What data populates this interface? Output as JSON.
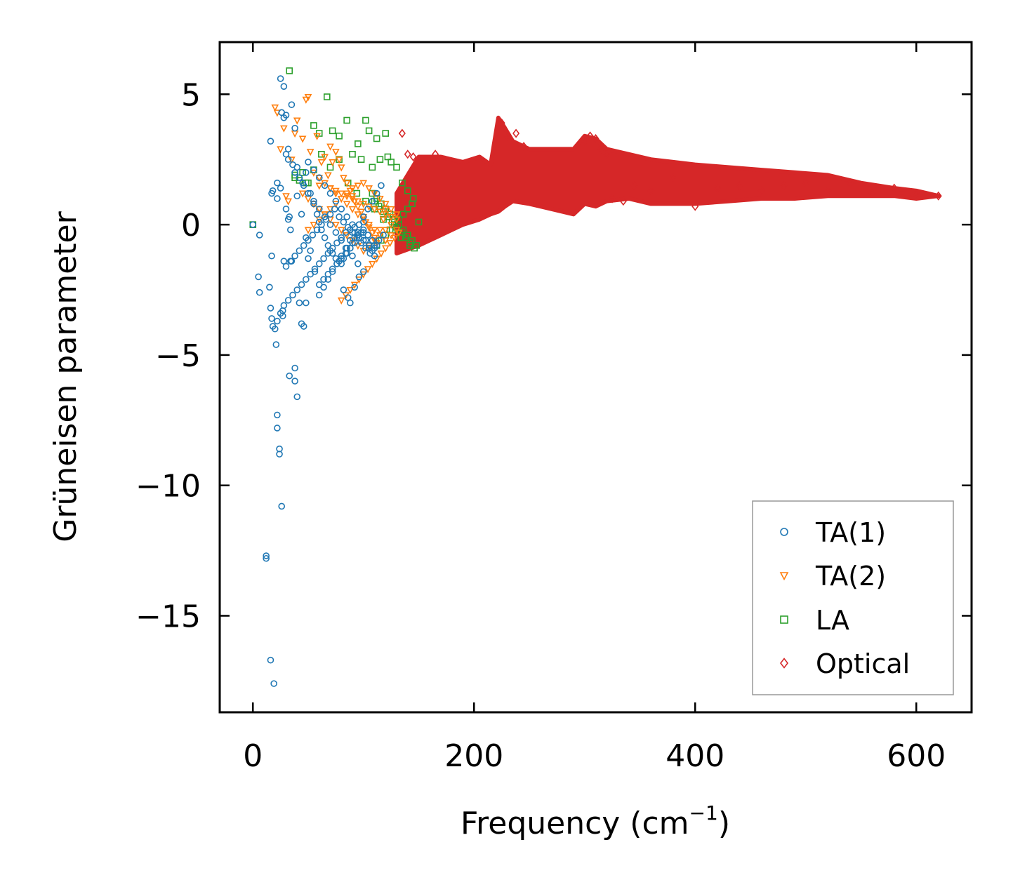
{
  "chart_data": {
    "type": "scatter",
    "title": "",
    "xlabel": "Frequency (cm",
    "xlabel_sup": "−1",
    "xlabel_tail": ")",
    "ylabel": "Grüneisen parameter",
    "xlim": [
      -30,
      650
    ],
    "ylim": [
      -18.7,
      7.0
    ],
    "xticks": [
      0,
      200,
      400,
      600
    ],
    "xtick_labels": [
      "0",
      "200",
      "400",
      "600"
    ],
    "yticks": [
      5,
      0,
      -5,
      -10,
      -15
    ],
    "ytick_labels": [
      "5",
      "0",
      "−5",
      "−10",
      "−15"
    ],
    "grid": false,
    "legend_position": "lower-right",
    "series": [
      {
        "name": "TA(1)",
        "marker": "circle",
        "color": "#1f77b4",
        "x": [
          0,
          6,
          5,
          6,
          15,
          16,
          17,
          16,
          19,
          20,
          21,
          22,
          22,
          24,
          24,
          26,
          27,
          27,
          12,
          12,
          17,
          17,
          16,
          18,
          22,
          25,
          28,
          30,
          32,
          32,
          34,
          35,
          33,
          38,
          40,
          38,
          42,
          44,
          46,
          48,
          50,
          22,
          25,
          26,
          28,
          30,
          32,
          35,
          38,
          40,
          45,
          48,
          52,
          55,
          58,
          60,
          62,
          65,
          68,
          70,
          72,
          75,
          78,
          80,
          82,
          85,
          88,
          90,
          92,
          95,
          98,
          100,
          102,
          105,
          108,
          110,
          38,
          42,
          46,
          50,
          55,
          60,
          65,
          70,
          75,
          80,
          85,
          90,
          95,
          100,
          82,
          86,
          88,
          92,
          96,
          28,
          30,
          33,
          36,
          40,
          44,
          48,
          52,
          56,
          60,
          64,
          68,
          72,
          76,
          80,
          84,
          88,
          92,
          96,
          100,
          104,
          108,
          112,
          18,
          22,
          25,
          28,
          32,
          36,
          40,
          44,
          48,
          52,
          56,
          60,
          64,
          68,
          72,
          76,
          80,
          84,
          88,
          92,
          96,
          100,
          30,
          34,
          38,
          42,
          46,
          50,
          54,
          58,
          62,
          66,
          70,
          74,
          78,
          82,
          86,
          90,
          94,
          98,
          102,
          106,
          110,
          114,
          118,
          60,
          64,
          68,
          72,
          76,
          80,
          84,
          88,
          92,
          96,
          100,
          104,
          108,
          112,
          116,
          50,
          55,
          60,
          65,
          70,
          75,
          80,
          85,
          90,
          95,
          100,
          105,
          110
        ],
        "y": [
          0,
          -0.4,
          -2.0,
          -2.6,
          -2.4,
          -3.2,
          -3.6,
          -16.7,
          -17.6,
          -4.0,
          -4.6,
          -7.3,
          -7.8,
          -8.6,
          -8.8,
          -10.8,
          -3.5,
          -3.3,
          -12.8,
          -12.7,
          -1.2,
          1.2,
          3.2,
          1.3,
          1.6,
          5.6,
          5.3,
          4.2,
          2.9,
          0.2,
          -0.2,
          -1.4,
          -5.8,
          -6.0,
          -6.6,
          -5.5,
          -3.0,
          -3.8,
          -3.9,
          -3.0,
          -1.3,
          1.0,
          1.4,
          4.3,
          4.1,
          2.7,
          2.5,
          4.6,
          3.7,
          2.2,
          1.6,
          2.0,
          1.2,
          0.8,
          0.4,
          0.1,
          -0.2,
          -0.5,
          -0.8,
          -1.0,
          -1.1,
          -1.3,
          -1.4,
          -1.5,
          -1.3,
          -1.1,
          -0.9,
          -0.7,
          -0.5,
          -0.4,
          -0.3,
          -0.2,
          -0.6,
          -0.8,
          -1.0,
          -0.9,
          2.0,
          1.8,
          1.5,
          1.2,
          0.9,
          0.6,
          0.3,
          0.0,
          -0.3,
          -0.6,
          -0.9,
          -1.2,
          -1.5,
          -1.8,
          -2.5,
          -2.8,
          -3.0,
          -2.4,
          -2.0,
          -1.4,
          0.6,
          0.3,
          2.3,
          1.1,
          0.4,
          -0.5,
          -1.0,
          -1.8,
          -2.3,
          -2.1,
          -1.9,
          -1.7,
          -1.5,
          -1.3,
          -1.1,
          -0.9,
          -0.7,
          -0.5,
          -0.3,
          -0.4,
          -0.6,
          -0.8,
          -3.9,
          -3.7,
          -3.4,
          -3.1,
          -2.9,
          -2.7,
          -2.5,
          -2.3,
          -2.1,
          -1.9,
          -1.7,
          -1.5,
          -1.3,
          -1.1,
          -0.9,
          -0.7,
          -0.5,
          -0.3,
          -0.2,
          -0.1,
          0.0,
          0.1,
          -1.6,
          -1.4,
          -1.2,
          -1.0,
          -0.8,
          -0.6,
          -0.4,
          -0.2,
          0.0,
          0.2,
          0.4,
          0.6,
          0.3,
          0.1,
          -0.1,
          -0.3,
          -0.5,
          -0.7,
          -0.9,
          -1.1,
          -0.8,
          -0.6,
          -0.4,
          -2.7,
          -2.4,
          -2.1,
          -1.8,
          -1.5,
          -1.2,
          -0.9,
          -0.6,
          -0.3,
          0.0,
          0.3,
          0.6,
          0.9,
          1.2,
          1.5,
          2.4,
          2.1,
          1.8,
          1.5,
          1.2,
          0.9,
          0.6,
          0.3,
          0.0,
          -0.3,
          -0.6,
          -0.9,
          -1.2
        ]
      },
      {
        "name": "TA(2)",
        "marker": "triangle-down",
        "color": "#ff7f0e",
        "x": [
          20,
          22,
          25,
          28,
          30,
          32,
          35,
          38,
          40,
          45,
          48,
          50,
          52,
          55,
          58,
          60,
          62,
          65,
          68,
          70,
          72,
          75,
          78,
          80,
          82,
          85,
          88,
          90,
          92,
          95,
          98,
          100,
          102,
          105,
          108,
          110,
          112,
          115,
          118,
          120,
          45,
          50,
          55,
          60,
          65,
          70,
          75,
          80,
          85,
          90,
          95,
          100,
          105,
          110,
          115,
          120,
          125,
          60,
          65,
          70,
          75,
          80,
          85,
          90,
          95,
          100,
          105,
          110,
          115,
          120,
          125,
          130,
          80,
          84,
          88,
          92,
          96,
          100,
          104,
          108,
          112,
          116,
          120,
          124,
          128,
          132,
          70,
          75,
          80,
          85,
          90,
          95,
          100,
          105,
          110,
          115,
          120,
          125,
          130,
          50,
          55,
          60,
          65,
          70,
          75,
          80,
          85,
          90,
          95,
          100,
          105,
          110,
          115,
          120,
          125,
          130
        ],
        "y": [
          4.5,
          4.3,
          2.9,
          3.7,
          1.1,
          0.9,
          2.5,
          3.5,
          4.0,
          3.3,
          4.8,
          4.9,
          2.8,
          2.0,
          3.4,
          1.5,
          2.4,
          2.6,
          1.9,
          3.0,
          2.4,
          2.8,
          2.5,
          2.2,
          1.8,
          1.6,
          1.3,
          1.1,
          0.9,
          0.7,
          0.5,
          0.3,
          0.1,
          -0.1,
          -0.3,
          -0.5,
          -0.7,
          -0.2,
          0.2,
          0.6,
          1.2,
          1.0,
          0.8,
          0.6,
          0.4,
          0.2,
          0.0,
          -0.2,
          -0.4,
          -0.6,
          -0.8,
          -1.0,
          -0.8,
          -0.6,
          -0.4,
          -0.2,
          0.0,
          1.8,
          1.6,
          1.4,
          1.2,
          1.0,
          0.8,
          0.6,
          0.4,
          0.2,
          0.0,
          -0.2,
          -0.4,
          -0.6,
          -0.4,
          -0.2,
          -2.9,
          -2.7,
          -2.5,
          -2.3,
          -2.1,
          -1.9,
          -1.7,
          -1.5,
          -1.3,
          -1.1,
          -0.9,
          -0.7,
          -0.5,
          -0.3,
          1.4,
          1.3,
          1.2,
          1.1,
          1.0,
          0.9,
          0.8,
          0.7,
          0.6,
          0.5,
          0.4,
          0.3,
          0.2,
          -0.2,
          0.0,
          0.2,
          0.4,
          0.6,
          0.8,
          1.0,
          1.2,
          1.4,
          1.5,
          1.6,
          1.4,
          1.2,
          1.0,
          0.8,
          0.6,
          0.4
        ]
      },
      {
        "name": "LA",
        "marker": "square",
        "color": "#2ca02c",
        "x": [
          0,
          33,
          38,
          45,
          50,
          55,
          60,
          67,
          72,
          78,
          85,
          90,
          95,
          98,
          102,
          105,
          108,
          112,
          115,
          120,
          122,
          125,
          130,
          135,
          140,
          145,
          150,
          38,
          42,
          48,
          55,
          62,
          70,
          78,
          86,
          94,
          102,
          110,
          118,
          126,
          134,
          142,
          108,
          112,
          116,
          120,
          124,
          128,
          132,
          136,
          140,
          144,
          148,
          110,
          114,
          118,
          122,
          126,
          130,
          134,
          138,
          142,
          146,
          112,
          116,
          120,
          124,
          128,
          132,
          136,
          140,
          144
        ],
        "y": [
          0,
          5.9,
          1.8,
          2.0,
          1.6,
          3.8,
          3.5,
          4.9,
          3.6,
          3.4,
          4.0,
          2.7,
          3.1,
          2.5,
          4.0,
          3.6,
          2.2,
          3.3,
          2.5,
          3.5,
          2.6,
          2.4,
          2.2,
          1.6,
          1.3,
          1.0,
          0.1,
          1.9,
          1.7,
          1.6,
          2.1,
          2.7,
          2.2,
          2.5,
          1.6,
          1.2,
          0.9,
          0.6,
          0.2,
          -0.2,
          -0.5,
          -0.8,
          1.2,
          1.0,
          0.8,
          0.6,
          0.4,
          0.2,
          0.0,
          -0.2,
          -0.4,
          -0.6,
          -0.8,
          0.9,
          0.7,
          0.5,
          0.3,
          0.1,
          -0.1,
          -0.3,
          -0.5,
          -0.7,
          -0.9,
          -0.8,
          -0.6,
          -0.4,
          -0.2,
          0.0,
          0.2,
          0.4,
          0.6,
          0.8
        ]
      },
      {
        "name": "Optical",
        "marker": "diamond",
        "color": "#d62728",
        "envelope": {
          "x": [
            130,
            150,
            170,
            190,
            205,
            215,
            222,
            228,
            235,
            250,
            270,
            290,
            300,
            310,
            320,
            340,
            360,
            380,
            400,
            430,
            460,
            490,
            520,
            550,
            580,
            600,
            620
          ],
          "upper": [
            1.2,
            2.6,
            2.6,
            2.4,
            2.6,
            2.3,
            4.1,
            3.7,
            3.2,
            2.9,
            2.9,
            2.9,
            3.4,
            3.3,
            2.9,
            2.7,
            2.5,
            2.4,
            2.3,
            2.2,
            2.1,
            2.0,
            1.9,
            1.6,
            1.4,
            1.3,
            1.1
          ],
          "lower": [
            -1.1,
            -0.8,
            -0.4,
            0.0,
            0.2,
            0.4,
            0.5,
            0.7,
            0.9,
            0.8,
            0.6,
            0.4,
            0.8,
            0.7,
            0.9,
            1.0,
            0.8,
            0.8,
            0.8,
            0.9,
            1.0,
            1.0,
            1.1,
            1.1,
            1.1,
            1.0,
            1.1
          ]
        },
        "x": [
          135,
          140,
          145,
          165,
          225,
          230,
          238,
          245,
          300,
          305,
          310,
          315,
          320,
          325,
          335,
          345,
          360,
          380,
          400,
          420,
          440,
          460,
          480,
          500,
          520,
          540,
          560,
          580,
          600,
          620
        ],
        "y": [
          3.5,
          2.7,
          2.6,
          2.7,
          3.9,
          3.4,
          3.5,
          3.0,
          3.2,
          3.4,
          3.3,
          2.9,
          2.7,
          1.0,
          0.9,
          1.5,
          1.3,
          1.8,
          0.7,
          1.4,
          1.5,
          1.3,
          1.5,
          1.6,
          1.3,
          1.6,
          1.2,
          1.4,
          1.2,
          1.1
        ]
      }
    ]
  }
}
